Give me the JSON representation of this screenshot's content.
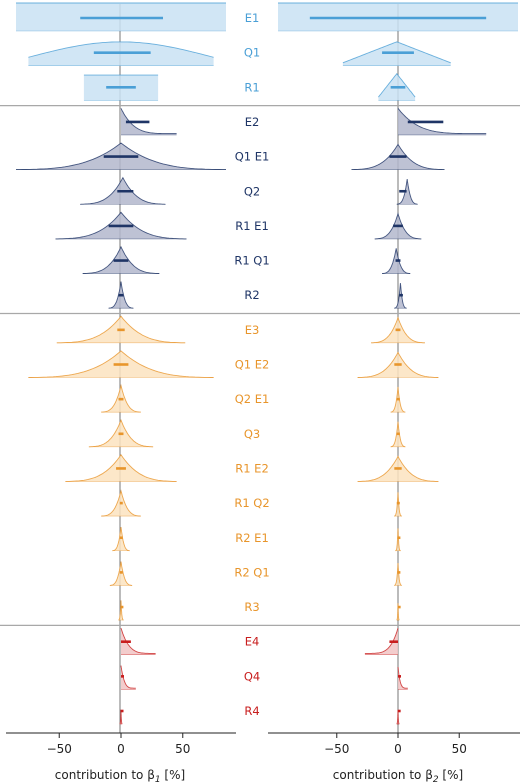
{
  "chart_data": {
    "type": "distribution",
    "panels": [
      {
        "xlabel": "contribution to β₁ [%]",
        "xlabel_main": "contribution to β",
        "xlabel_sub": "1",
        "xlabel_unit": " [%]",
        "xlim": [
          -85,
          85
        ],
        "ticks": [
          -50,
          0,
          50
        ],
        "tick_labels": [
          "−50",
          "0",
          "50"
        ]
      },
      {
        "xlabel": "contribution to β₂ [%]",
        "xlabel_main": "contribution to β",
        "xlabel_sub": "2",
        "xlabel_unit": " [%]",
        "xlim": [
          -98,
          98
        ],
        "ticks": [
          -50,
          0,
          50
        ],
        "tick_labels": [
          "−50",
          "0",
          "50"
        ]
      }
    ],
    "groups": [
      {
        "order": 1,
        "color": "#4a9fd6",
        "fill": "#c9e2f3"
      },
      {
        "order": 2,
        "color": "#1f3566",
        "fill": "#b3b7cc"
      },
      {
        "order": 3,
        "color": "#e8952b",
        "fill": "#fbe3c0"
      },
      {
        "order": 4,
        "color": "#c81e1e",
        "fill": "#f1c4c4"
      }
    ],
    "rows": [
      {
        "label": "E1",
        "group": 1,
        "b1": {
          "shape": "flat",
          "lo": -85,
          "hi": 85,
          "height": 1.0,
          "ci": [
            -33,
            34
          ]
        },
        "b2": {
          "shape": "flat",
          "lo": -98,
          "hi": 98,
          "height": 1.0,
          "ci": [
            -72,
            72
          ]
        }
      },
      {
        "label": "Q1",
        "group": 1,
        "b1": {
          "shape": "dome",
          "lo": -75,
          "hi": 75,
          "height": 0.85,
          "ci": [
            -22,
            24
          ]
        },
        "b2": {
          "shape": "peak",
          "lo": -45,
          "hi": 43,
          "height": 0.85,
          "ci": [
            -13,
            13
          ]
        }
      },
      {
        "label": "R1",
        "group": 1,
        "b1": {
          "shape": "flat",
          "lo": -30,
          "hi": 30,
          "height": 0.9,
          "ci": [
            -12,
            12
          ]
        },
        "b2": {
          "shape": "peak",
          "lo": -16,
          "hi": 14,
          "height": 0.95,
          "ci": [
            -6,
            6
          ]
        }
      },
      {
        "label": "E2",
        "group": 2,
        "b1": {
          "shape": "oneside",
          "lo": 0,
          "hi": 45,
          "height": 0.95,
          "ci": [
            4,
            23
          ]
        },
        "b2": {
          "shape": "oneside",
          "lo": 0,
          "hi": 72,
          "height": 0.95,
          "ci": [
            8,
            37
          ]
        }
      },
      {
        "label": "Q1 E1",
        "group": 2,
        "b1": {
          "shape": "cusp",
          "lo": -85,
          "hi": 85,
          "height": 0.95,
          "ci": [
            -14,
            14
          ]
        },
        "b2": {
          "shape": "cusp",
          "lo": -38,
          "hi": 38,
          "height": 0.9,
          "ci": [
            -7,
            7
          ]
        }
      },
      {
        "label": "Q2",
        "group": 2,
        "b1": {
          "shape": "cusp",
          "lo": -33,
          "hi": 36,
          "height": 0.95,
          "ci": [
            -3,
            10
          ]
        },
        "b2": {
          "shape": "cusp",
          "lo": -1,
          "hi": 16,
          "height": 0.9,
          "ci": [
            1,
            7
          ]
        }
      },
      {
        "label": "R1 E1",
        "group": 2,
        "b1": {
          "shape": "cusp",
          "lo": -53,
          "hi": 53,
          "height": 0.95,
          "ci": [
            -10,
            10
          ]
        },
        "b2": {
          "shape": "cusp",
          "lo": -19,
          "hi": 19,
          "height": 0.9,
          "ci": [
            -4,
            4
          ]
        }
      },
      {
        "label": "R1 Q1",
        "group": 2,
        "b1": {
          "shape": "cusp",
          "lo": -31,
          "hi": 31,
          "height": 0.95,
          "ci": [
            -6,
            6
          ]
        },
        "b2": {
          "shape": "cusp",
          "lo": -13,
          "hi": 10,
          "height": 0.9,
          "ci": [
            -2,
            2
          ]
        }
      },
      {
        "label": "R2",
        "group": 2,
        "b1": {
          "shape": "cusp",
          "lo": -10,
          "hi": 10,
          "height": 0.95,
          "ci": [
            -2,
            2
          ]
        },
        "b2": {
          "shape": "cusp",
          "lo": -3,
          "hi": 7,
          "height": 0.9,
          "ci": [
            1,
            4
          ]
        }
      },
      {
        "label": "E3",
        "group": 3,
        "b1": {
          "shape": "cusp",
          "lo": -52,
          "hi": 52,
          "height": 0.95,
          "ci": [
            -3,
            3
          ]
        },
        "b2": {
          "shape": "cusp",
          "lo": -22,
          "hi": 22,
          "height": 0.9,
          "ci": [
            -2,
            2
          ]
        }
      },
      {
        "label": "Q1 E2",
        "group": 3,
        "b1": {
          "shape": "cusp",
          "lo": -75,
          "hi": 75,
          "height": 0.95,
          "ci": [
            -6,
            6
          ]
        },
        "b2": {
          "shape": "cusp",
          "lo": -33,
          "hi": 33,
          "height": 0.9,
          "ci": [
            -3,
            3
          ]
        }
      },
      {
        "label": "Q2 E1",
        "group": 3,
        "b1": {
          "shape": "cusp",
          "lo": -16,
          "hi": 16,
          "height": 0.95,
          "ci": [
            -2,
            2
          ]
        },
        "b2": {
          "shape": "cusp",
          "lo": -6,
          "hi": 6,
          "height": 0.9,
          "ci": [
            -1,
            1
          ]
        }
      },
      {
        "label": "Q3",
        "group": 3,
        "b1": {
          "shape": "cusp",
          "lo": -26,
          "hi": 26,
          "height": 0.95,
          "ci": [
            -2,
            2
          ]
        },
        "b2": {
          "shape": "cusp",
          "lo": -6,
          "hi": 6,
          "height": 0.9,
          "ci": [
            -1,
            1
          ]
        }
      },
      {
        "label": "R1 E2",
        "group": 3,
        "b1": {
          "shape": "cusp",
          "lo": -45,
          "hi": 45,
          "height": 0.95,
          "ci": [
            -4,
            4
          ]
        },
        "b2": {
          "shape": "cusp",
          "lo": -33,
          "hi": 33,
          "height": 0.9,
          "ci": [
            -3,
            3
          ]
        }
      },
      {
        "label": "R1 Q2",
        "group": 3,
        "b1": {
          "shape": "cusp",
          "lo": -16,
          "hi": 16,
          "height": 0.9,
          "ci": [
            -1,
            1
          ]
        },
        "b2": {
          "shape": "cusp",
          "lo": -3,
          "hi": 3,
          "height": 0.85,
          "ci": [
            -1,
            1
          ]
        }
      },
      {
        "label": "R2 E1",
        "group": 3,
        "b1": {
          "shape": "cusp",
          "lo": -7,
          "hi": 7,
          "height": 0.85,
          "ci": [
            -1,
            1
          ]
        },
        "b2": {
          "shape": "cusp",
          "lo": -2,
          "hi": 2,
          "height": 0.8,
          "ci": [
            -0.5,
            0.5
          ]
        }
      },
      {
        "label": "R2 Q1",
        "group": 3,
        "b1": {
          "shape": "cusp",
          "lo": -9,
          "hi": 9,
          "height": 0.85,
          "ci": [
            -1,
            1
          ]
        },
        "b2": {
          "shape": "cusp",
          "lo": -3,
          "hi": 3,
          "height": 0.8,
          "ci": [
            -0.5,
            0.5
          ]
        }
      },
      {
        "label": "R3",
        "group": 3,
        "b1": {
          "shape": "cusp",
          "lo": -2,
          "hi": 2,
          "height": 0.7,
          "ci": [
            -0.5,
            0.5
          ]
        },
        "b2": {
          "shape": "cusp",
          "lo": -1,
          "hi": 1,
          "height": 0.6,
          "ci": [
            -0.3,
            0.3
          ]
        }
      },
      {
        "label": "E4",
        "group": 4,
        "b1": {
          "shape": "oneside",
          "lo": 0,
          "hi": 28,
          "height": 0.95,
          "ci": [
            0,
            8
          ]
        },
        "b2": {
          "shape": "onesideneg",
          "lo": -27,
          "hi": 0,
          "height": 0.95,
          "ci": [
            -7,
            0
          ]
        }
      },
      {
        "label": "Q4",
        "group": 4,
        "b1": {
          "shape": "oneside",
          "lo": 0,
          "hi": 12,
          "height": 0.85,
          "ci": [
            0,
            2
          ]
        },
        "b2": {
          "shape": "oneside",
          "lo": 0,
          "hi": 8,
          "height": 0.8,
          "ci": [
            0,
            1
          ]
        }
      },
      {
        "label": "R4",
        "group": 4,
        "b1": {
          "shape": "cusp",
          "lo": -1,
          "hi": 1,
          "height": 0.5,
          "ci": [
            -0.4,
            0.4
          ]
        },
        "b2": {
          "shape": "cusp",
          "lo": -1,
          "hi": 1,
          "height": 0.5,
          "ci": [
            -0.3,
            0.3
          ]
        }
      }
    ]
  }
}
